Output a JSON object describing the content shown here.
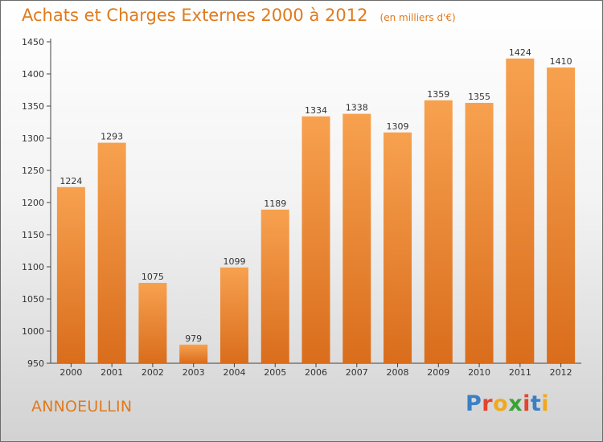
{
  "header": {
    "title": "Achats et Charges Externes 2000 à 2012",
    "unit": "(en milliers d'€)"
  },
  "footer": {
    "city": "ANNOEULLIN",
    "brand": [
      "P",
      "r",
      "o",
      "x",
      "i",
      "t",
      "i"
    ],
    "brand_colors": [
      "#3b7fc4",
      "#e2452f",
      "#f0a91e",
      "#3aa335",
      "#e2452f",
      "#3b7fc4",
      "#f0a91e"
    ]
  },
  "colors": {
    "bar_light": "#f7a14f",
    "bar_dark": "#d96d1c",
    "accent": "#e07a1d"
  },
  "chart_data": {
    "type": "bar",
    "title": "Achats et Charges Externes 2000 à 2012",
    "categories": [
      "2000",
      "2001",
      "2002",
      "2003",
      "2004",
      "2005",
      "2006",
      "2007",
      "2008",
      "2009",
      "2010",
      "2011",
      "2012"
    ],
    "values": [
      1224,
      1293,
      1075,
      979,
      1099,
      1189,
      1334,
      1338,
      1309,
      1359,
      1355,
      1424,
      1410
    ],
    "ylim": [
      950,
      1450
    ],
    "yticks": [
      950,
      1000,
      1050,
      1100,
      1150,
      1200,
      1250,
      1300,
      1350,
      1400,
      1450
    ],
    "grid": false,
    "legend": "none"
  }
}
